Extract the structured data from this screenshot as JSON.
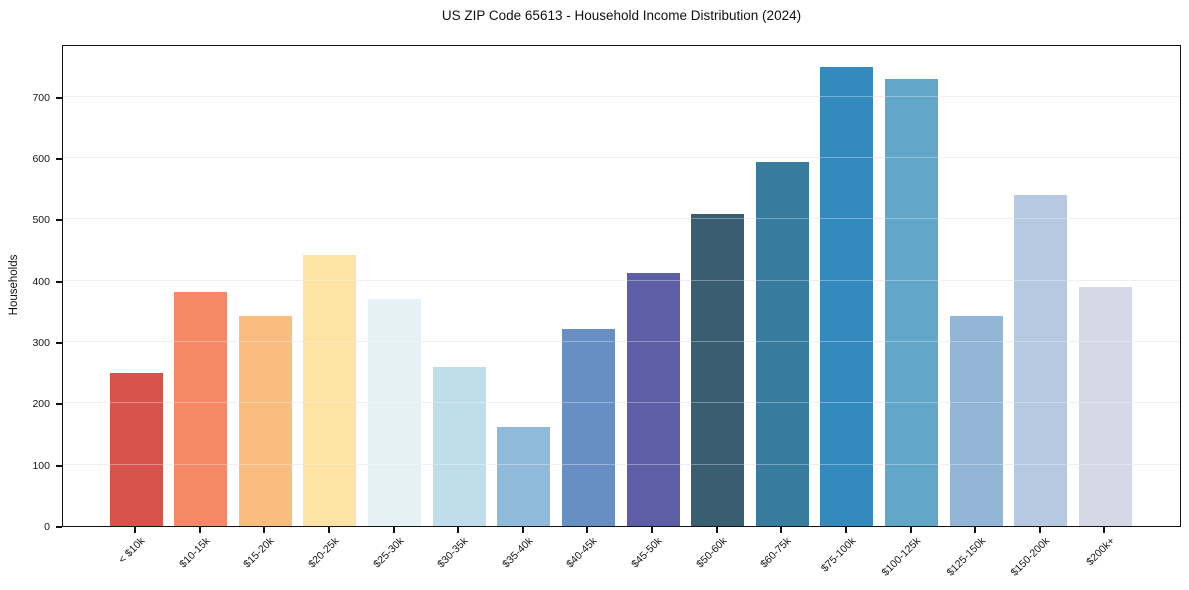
{
  "chart_data": {
    "type": "bar",
    "title": "US ZIP Code 65613 - Household Income Distribution (2024)",
    "xlabel": "",
    "ylabel": "Households",
    "categories": [
      "< $10k",
      "$10-15k",
      "$15-20k",
      "$20-25k",
      "$25-30k",
      "$30-35k",
      "$35-40k",
      "$40-45k",
      "$45-50k",
      "$50-60k",
      "$60-75k",
      "$75-100k",
      "$100-125k",
      "$125-150k",
      "$150-200k",
      "$200k+"
    ],
    "values": [
      250,
      381,
      342,
      442,
      370,
      260,
      162,
      322,
      412,
      508,
      594,
      748,
      729,
      343,
      539,
      390
    ],
    "bar_colors": [
      "#d6544c",
      "#f48867",
      "#fabd80",
      "#fde4a6",
      "#e6f1f5",
      "#bfddeb",
      "#8fbada",
      "#688fc4",
      "#5d5fa6",
      "#395e71",
      "#377b9e",
      "#348abd",
      "#62a6ca",
      "#93b5d6",
      "#b7c9e0",
      "#d7d8e7"
    ],
    "yticks": [
      0,
      100,
      200,
      300,
      400,
      500,
      600,
      700
    ],
    "ylim": [
      0,
      786
    ],
    "grid": "horizontal",
    "gridline_color": "#e8e8eb",
    "legend": "none",
    "background": "#ffffff"
  }
}
